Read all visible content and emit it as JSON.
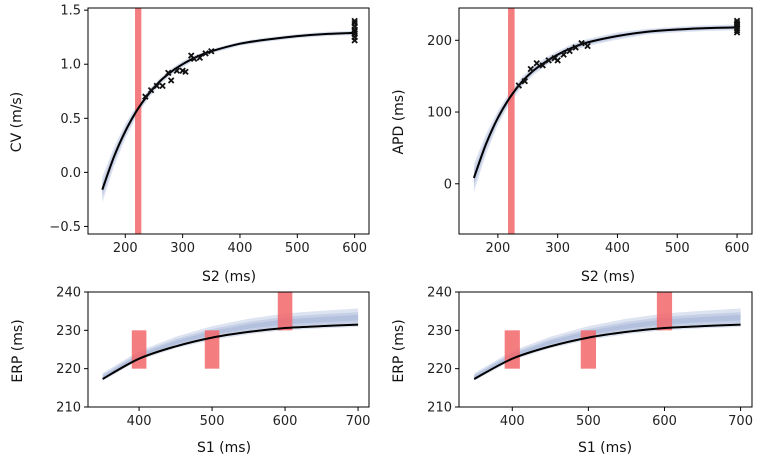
{
  "chart_data": [
    {
      "type": "line",
      "id": "cv-s2",
      "xlabel": "S2 (ms)",
      "ylabel": "CV (m/s)",
      "xlim": [
        135,
        625
      ],
      "ylim": [
        -0.57,
        1.52
      ],
      "xticks": [
        200,
        300,
        400,
        500,
        600
      ],
      "yticks": [
        -0.5,
        0.0,
        0.5,
        1.0,
        1.5
      ],
      "ytick_labels": [
        "−0.5",
        "0.0",
        "0.5",
        "1.0",
        "1.5"
      ],
      "grid": false,
      "mean_curve": {
        "x": [
          160,
          180,
          200,
          220,
          240,
          260,
          280,
          300,
          325,
          350,
          400,
          450,
          500,
          550,
          600
        ],
        "y": [
          -0.16,
          0.14,
          0.38,
          0.57,
          0.72,
          0.84,
          0.93,
          1.0,
          1.07,
          1.12,
          1.19,
          1.23,
          1.26,
          1.28,
          1.29
        ]
      },
      "band_halfwidth": [
        0.12,
        0.09,
        0.07,
        0.05,
        0.04,
        0.03,
        0.03,
        0.03,
        0.02,
        0.02,
        0.02,
        0.02,
        0.02,
        0.02,
        0.02
      ],
      "observations": {
        "x": [
          235,
          245,
          255,
          265,
          275,
          280,
          290,
          300,
          305,
          315,
          320,
          330,
          340,
          350,
          600,
          600,
          600,
          600,
          600,
          600,
          600,
          600
        ],
        "y": [
          0.7,
          0.76,
          0.8,
          0.8,
          0.92,
          0.85,
          0.94,
          0.94,
          0.93,
          1.08,
          1.05,
          1.06,
          1.1,
          1.12,
          1.22,
          1.25,
          1.28,
          1.3,
          1.32,
          1.35,
          1.38,
          1.4
        ]
      },
      "marker_region": {
        "x": [
          217,
          228
        ]
      }
    },
    {
      "type": "line",
      "id": "apd-s2",
      "xlabel": "S2 (ms)",
      "ylabel": "APD (ms)",
      "xlim": [
        135,
        625
      ],
      "ylim": [
        -70,
        245
      ],
      "xticks": [
        200,
        300,
        400,
        500,
        600
      ],
      "yticks": [
        0,
        100,
        200
      ],
      "ytick_labels": [
        "0",
        "100",
        "200"
      ],
      "grid": false,
      "mean_curve": {
        "x": [
          160,
          180,
          200,
          220,
          240,
          260,
          280,
          300,
          325,
          350,
          400,
          450,
          500,
          550,
          600
        ],
        "y": [
          8,
          55,
          92,
          120,
          142,
          158,
          170,
          180,
          190,
          197,
          206,
          212,
          215,
          217,
          218
        ]
      },
      "band_halfwidth": [
        20,
        14,
        10,
        8,
        7,
        6,
        6,
        5,
        5,
        5,
        5,
        4,
        4,
        4,
        4
      ],
      "observations": {
        "x": [
          235,
          245,
          255,
          265,
          275,
          285,
          295,
          300,
          310,
          320,
          330,
          340,
          350,
          600,
          600,
          600,
          600,
          600,
          600,
          600
        ],
        "y": [
          137,
          143,
          160,
          168,
          165,
          172,
          175,
          172,
          180,
          185,
          190,
          196,
          192,
          211,
          214,
          217,
          220,
          222,
          224,
          227
        ]
      },
      "marker_region": {
        "x": [
          217,
          228
        ]
      }
    },
    {
      "type": "line",
      "id": "erp-s1-a",
      "xlabel": "S1 (ms)",
      "ylabel": "ERP (ms)",
      "xlim": [
        330,
        715
      ],
      "ylim": [
        210,
        240
      ],
      "xticks": [
        400,
        500,
        600,
        700
      ],
      "yticks": [
        210,
        220,
        230,
        240
      ],
      "ytick_labels": [
        "210",
        "220",
        "230",
        "240"
      ],
      "grid": false,
      "mean_curve": {
        "x": [
          350,
          400,
          450,
          500,
          550,
          600,
          650,
          700
        ],
        "y": [
          217.3,
          222.6,
          225.8,
          228.1,
          229.6,
          230.6,
          231.1,
          231.5
        ]
      },
      "band_halfwidth": [
        1.0,
        1.2,
        1.5,
        1.8,
        2.0,
        2.2,
        2.3,
        2.4
      ],
      "band_offset": [
        0.5,
        0.8,
        1.0,
        1.2,
        1.4,
        1.6,
        1.7,
        1.8
      ],
      "observation_ranges": [
        {
          "x": [
            390,
            410
          ],
          "y": [
            220,
            230
          ]
        },
        {
          "x": [
            490,
            510
          ],
          "y": [
            220,
            230
          ]
        },
        {
          "x": [
            590,
            610
          ],
          "y": [
            230,
            240
          ]
        }
      ]
    },
    {
      "type": "line",
      "id": "erp-s1-b",
      "xlabel": "S1 (ms)",
      "ylabel": "ERP (ms)",
      "xlim": [
        330,
        715
      ],
      "ylim": [
        210,
        240
      ],
      "xticks": [
        400,
        500,
        600,
        700
      ],
      "yticks": [
        210,
        220,
        230,
        240
      ],
      "ytick_labels": [
        "210",
        "220",
        "230",
        "240"
      ],
      "grid": false,
      "mean_curve": {
        "x": [
          350,
          400,
          450,
          500,
          550,
          600,
          650,
          700
        ],
        "y": [
          217.3,
          222.6,
          225.8,
          228.1,
          229.6,
          230.6,
          231.1,
          231.5
        ]
      },
      "band_halfwidth": [
        1.0,
        1.2,
        1.5,
        1.8,
        2.0,
        2.2,
        2.3,
        2.4
      ],
      "band_offset": [
        0.5,
        0.8,
        1.0,
        1.2,
        1.4,
        1.6,
        1.7,
        1.8
      ],
      "observation_ranges": [
        {
          "x": [
            390,
            410
          ],
          "y": [
            220,
            230
          ]
        },
        {
          "x": [
            490,
            510
          ],
          "y": [
            220,
            230
          ]
        },
        {
          "x": [
            590,
            610
          ],
          "y": [
            230,
            240
          ]
        }
      ]
    }
  ],
  "colors": {
    "curve": "#000000",
    "band": "#8fa2cc",
    "marker_region": "#f2666a",
    "observation": "#111111",
    "axes": "#000000"
  }
}
